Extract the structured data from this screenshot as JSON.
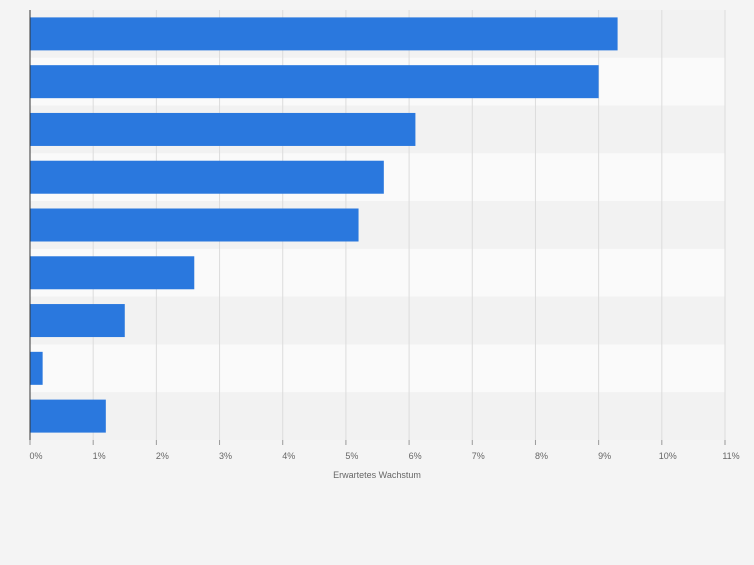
{
  "chart_data": {
    "type": "bar",
    "orientation": "horizontal",
    "categories": [
      "",
      "",
      "",
      "",
      "",
      "",
      "",
      "",
      ""
    ],
    "values": [
      9.3,
      9.0,
      6.1,
      5.6,
      5.2,
      2.6,
      1.5,
      0.2,
      1.2
    ],
    "xlim": [
      0,
      11
    ],
    "x_ticks": [
      0,
      1,
      2,
      3,
      4,
      5,
      6,
      7,
      8,
      9,
      10,
      11
    ],
    "x_tick_labels": [
      "0%",
      "1%",
      "2%",
      "3%",
      "4%",
      "5%",
      "6%",
      "7%",
      "8%",
      "9%",
      "10%",
      "11%"
    ],
    "xlabel": "Erwartetes Wachstum",
    "ylabel": "",
    "title": "",
    "grid": true,
    "colors": {
      "bar": "#2a78de",
      "grid": "#dcdcdc",
      "axis": "#333333",
      "band_light": "#fafafa",
      "band_dark": "#f2f2f2",
      "text": "#666666"
    }
  }
}
